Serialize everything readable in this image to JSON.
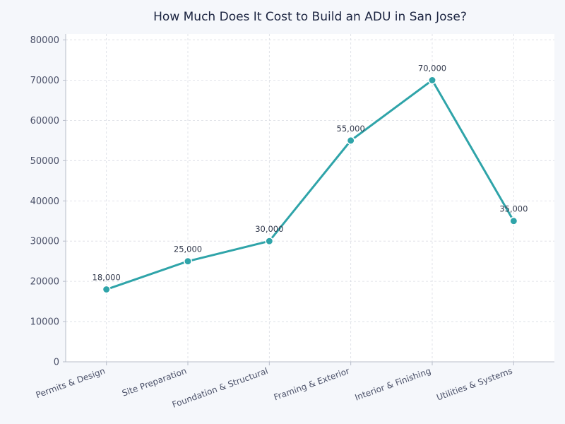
{
  "chart_data": {
    "type": "line",
    "title": "How Much Does It Cost to Build an ADU in San Jose?",
    "xlabel": "",
    "ylabel": "",
    "categories": [
      "Permits & Design",
      "Site Preparation",
      "Foundation & Structural",
      "Framing & Exterior",
      "Interior & Finishing",
      "Utilities & Systems"
    ],
    "series": [
      {
        "values": [
          18000,
          25000,
          30000,
          55000,
          70000,
          35000
        ],
        "data_labels": [
          "18,000",
          "25,000",
          "30,000",
          "55,000",
          "70,000",
          "35,000"
        ]
      }
    ],
    "ylim": [
      0,
      81500
    ],
    "yticks": [
      0,
      10000,
      20000,
      30000,
      40000,
      50000,
      60000,
      70000,
      80000
    ],
    "grid": true,
    "colors": {
      "line": "#2fa4a9",
      "marker_edge": "#ffffff",
      "plot_bg": "#ffffff",
      "page_bg": "#f5f7fb"
    }
  }
}
